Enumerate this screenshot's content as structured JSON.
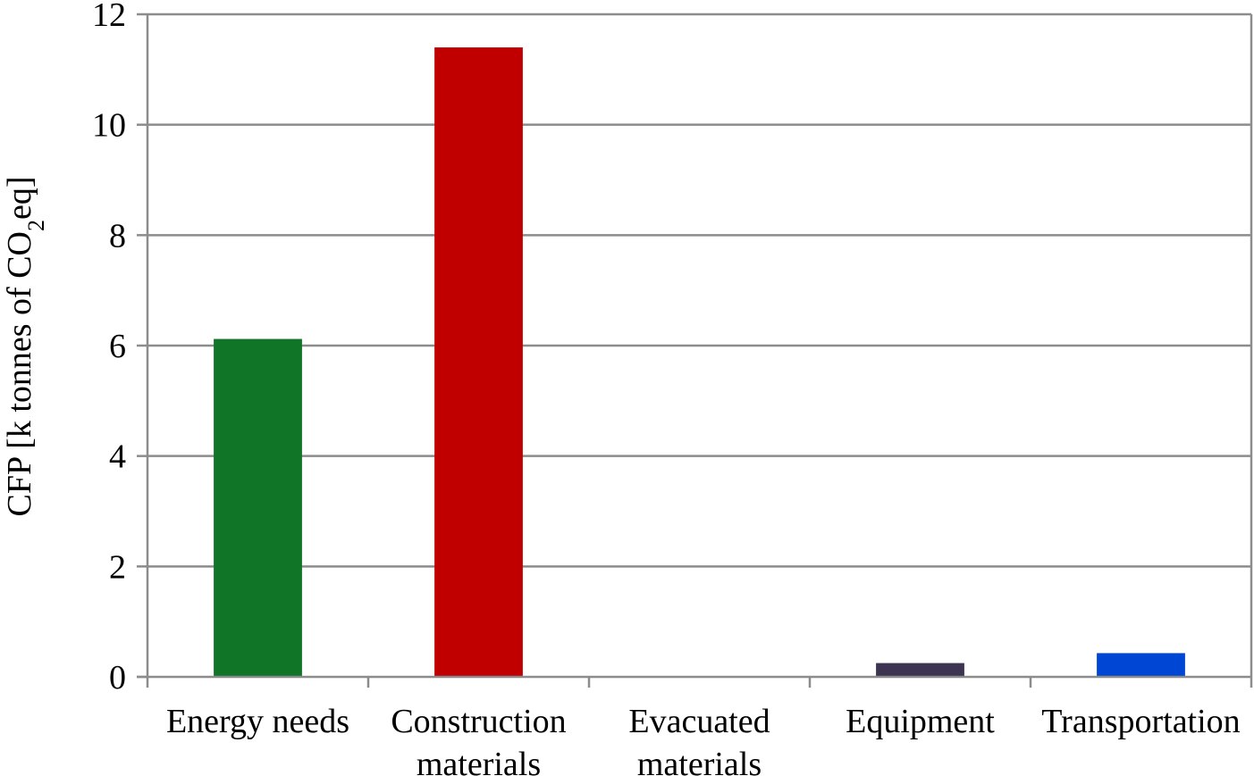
{
  "chart_data": {
    "type": "bar",
    "title": "",
    "xlabel": "",
    "ylabel": {
      "prefix": "CFP [k tonnes of CO",
      "subscript": "2",
      "suffix": "eq]"
    },
    "categories": [
      [
        "Energy needs"
      ],
      [
        "Construction",
        "materials"
      ],
      [
        "Evacuated",
        "materials"
      ],
      [
        "Equipment"
      ],
      [
        "Transportation"
      ]
    ],
    "values": [
      6.12,
      11.4,
      0,
      0.25,
      0.43
    ],
    "colors": [
      "#107526",
      "#c00000",
      "#7f7f7f",
      "#3c3450",
      "#0046d5"
    ],
    "ylim": [
      0,
      12
    ],
    "yticks": [
      0,
      2,
      4,
      6,
      8,
      10,
      12
    ],
    "grid": true,
    "legend": "none"
  }
}
